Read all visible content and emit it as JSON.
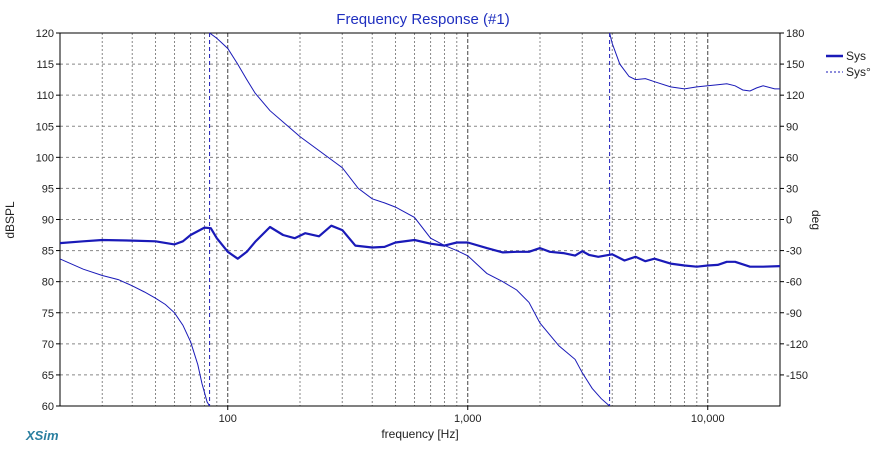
{
  "chart_data": {
    "type": "line",
    "title": "Frequency Response (#1)",
    "xlabel": "frequency [Hz]",
    "ylabel_left": "dBSPL",
    "ylabel_right": "deg",
    "x_scale": "log",
    "xlim": [
      20,
      20000
    ],
    "ylim_left": [
      60,
      120
    ],
    "ylim_right": [
      -180,
      180
    ],
    "x_tick_labels": [
      {
        "value": 100,
        "label": "100"
      },
      {
        "value": 1000,
        "label": "1,000"
      },
      {
        "value": 10000,
        "label": "10,000"
      }
    ],
    "y_left_ticks": [
      60,
      65,
      70,
      75,
      80,
      85,
      90,
      95,
      100,
      105,
      110,
      115,
      120
    ],
    "y_right_ticks": [
      -150,
      -120,
      -90,
      -60,
      -30,
      0,
      30,
      60,
      90,
      120,
      150,
      180
    ],
    "grid": true,
    "legend_position": "top-right",
    "colors": {
      "magnitude": "#1a1ab8",
      "phase": "#1a1ab8",
      "title": "#1f2fbf",
      "brand": "#2a7fa0"
    },
    "series": [
      {
        "name": "Sys",
        "axis": "left",
        "style": "solid-thick",
        "points": [
          [
            20,
            86.2
          ],
          [
            25,
            86.5
          ],
          [
            30,
            86.7
          ],
          [
            40,
            86.6
          ],
          [
            50,
            86.5
          ],
          [
            60,
            86.0
          ],
          [
            65,
            86.5
          ],
          [
            70,
            87.5
          ],
          [
            80,
            88.7
          ],
          [
            85,
            88.6
          ],
          [
            90,
            87.0
          ],
          [
            100,
            84.8
          ],
          [
            110,
            83.7
          ],
          [
            120,
            84.8
          ],
          [
            130,
            86.4
          ],
          [
            150,
            88.8
          ],
          [
            170,
            87.5
          ],
          [
            190,
            87.0
          ],
          [
            210,
            87.8
          ],
          [
            240,
            87.3
          ],
          [
            270,
            89.0
          ],
          [
            300,
            88.3
          ],
          [
            340,
            85.8
          ],
          [
            400,
            85.5
          ],
          [
            450,
            85.6
          ],
          [
            500,
            86.3
          ],
          [
            600,
            86.7
          ],
          [
            700,
            86.1
          ],
          [
            800,
            85.8
          ],
          [
            900,
            86.3
          ],
          [
            1000,
            86.3
          ],
          [
            1200,
            85.4
          ],
          [
            1400,
            84.7
          ],
          [
            1600,
            84.8
          ],
          [
            1800,
            84.8
          ],
          [
            2000,
            85.4
          ],
          [
            2200,
            84.8
          ],
          [
            2500,
            84.6
          ],
          [
            2800,
            84.2
          ],
          [
            3000,
            84.9
          ],
          [
            3200,
            84.3
          ],
          [
            3500,
            84.0
          ],
          [
            4000,
            84.4
          ],
          [
            4500,
            83.4
          ],
          [
            5000,
            84.0
          ],
          [
            5500,
            83.3
          ],
          [
            6000,
            83.7
          ],
          [
            7000,
            82.9
          ],
          [
            8000,
            82.6
          ],
          [
            9000,
            82.4
          ],
          [
            10000,
            82.6
          ],
          [
            11000,
            82.7
          ],
          [
            12000,
            83.2
          ],
          [
            13000,
            83.2
          ],
          [
            15000,
            82.4
          ],
          [
            17000,
            82.4
          ],
          [
            20000,
            82.5
          ]
        ]
      },
      {
        "name": "Sys°",
        "axis": "right",
        "style": "thin",
        "segments": [
          [
            [
              20,
              -38
            ],
            [
              25,
              -48
            ],
            [
              30,
              -54
            ],
            [
              35,
              -58
            ],
            [
              40,
              -64
            ],
            [
              45,
              -70
            ],
            [
              50,
              -76
            ],
            [
              55,
              -82
            ],
            [
              60,
              -90
            ],
            [
              65,
              -102
            ],
            [
              70,
              -118
            ],
            [
              75,
              -140
            ],
            [
              78,
              -158
            ],
            [
              82,
              -176
            ],
            [
              84,
              -180
            ]
          ],
          [
            [
              84,
              180
            ],
            [
              90,
              175
            ],
            [
              100,
              165
            ],
            [
              110,
              150
            ],
            [
              120,
              135
            ],
            [
              130,
              122
            ],
            [
              150,
              105
            ],
            [
              200,
              80
            ],
            [
              300,
              50
            ],
            [
              350,
              30
            ],
            [
              400,
              20
            ],
            [
              450,
              16
            ],
            [
              500,
              12
            ],
            [
              600,
              2
            ],
            [
              700,
              -18
            ],
            [
              800,
              -25
            ],
            [
              900,
              -30
            ],
            [
              1000,
              -35
            ],
            [
              1200,
              -52
            ],
            [
              1400,
              -60
            ],
            [
              1600,
              -68
            ],
            [
              1800,
              -80
            ],
            [
              2000,
              -100
            ],
            [
              2400,
              -122
            ],
            [
              2800,
              -135
            ],
            [
              3000,
              -148
            ],
            [
              3300,
              -163
            ],
            [
              3600,
              -173
            ],
            [
              3900,
              -180
            ]
          ],
          [
            [
              3900,
              180
            ],
            [
              4000,
              170
            ],
            [
              4300,
              150
            ],
            [
              4700,
              138
            ],
            [
              5000,
              135
            ],
            [
              5500,
              136
            ],
            [
              6000,
              133
            ],
            [
              7000,
              128
            ],
            [
              8000,
              126
            ],
            [
              9000,
              128
            ],
            [
              10000,
              129
            ],
            [
              11000,
              130
            ],
            [
              12000,
              131
            ],
            [
              13000,
              129
            ],
            [
              14000,
              125
            ],
            [
              15000,
              124
            ],
            [
              16000,
              127
            ],
            [
              17000,
              129
            ],
            [
              19000,
              126
            ],
            [
              20000,
              126
            ]
          ]
        ]
      }
    ]
  },
  "branding": {
    "app_name": "XSim"
  }
}
